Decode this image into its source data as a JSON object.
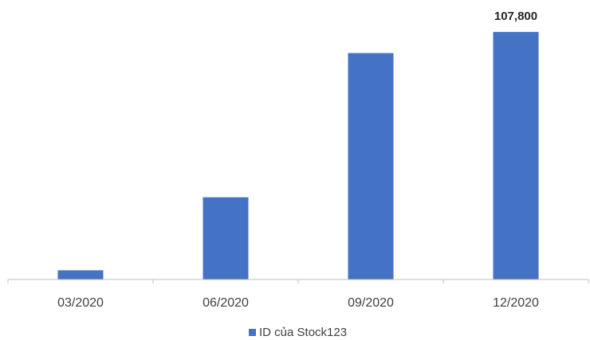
{
  "chart_data": {
    "type": "bar",
    "categories": [
      "03/2020",
      "06/2020",
      "09/2020",
      "12/2020"
    ],
    "series": [
      {
        "name": "ID của Stock123",
        "values": [
          4000,
          35800,
          98600,
          107800
        ],
        "color": "#4472C4"
      }
    ],
    "data_labels": [
      "",
      "",
      "",
      "107,800"
    ],
    "ylim": [
      0,
      112000
    ],
    "grid": false,
    "legend_position": "bottom",
    "xlabel": "",
    "ylabel": "",
    "title": ""
  }
}
